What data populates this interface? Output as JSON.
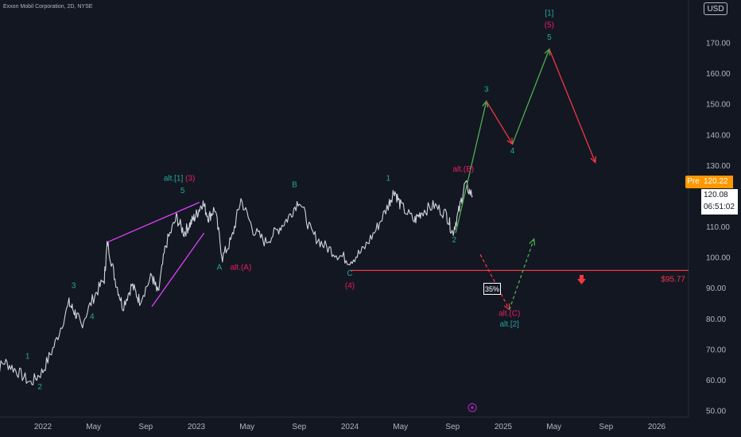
{
  "header": {
    "title": "Exxon Mobil Corporation, 2D, NYSE",
    "currency": "USD"
  },
  "price_tags": {
    "pre_label": "Pre",
    "pre_price": "120.22",
    "last_price": "120.08",
    "countdown": "06:51:02"
  },
  "colors": {
    "background": "#131722",
    "teal": "#26a69a",
    "crimson": "#e91e63",
    "magenta": "#e040fb",
    "green": "#4caf50",
    "red": "#f23645",
    "support": "#f23645"
  },
  "chart_data": {
    "type": "line",
    "title": "Exxon Mobil Corporation, 2D, NYSE",
    "xlabel": "",
    "ylabel": "",
    "ylim": [
      47,
      180
    ],
    "y_ticks": [
      "170.00",
      "160.00",
      "150.00",
      "140.00",
      "130.00",
      "120.00",
      "110.00",
      "100.00",
      "90.00",
      "80.00",
      "70.00",
      "60.00",
      "50.00"
    ],
    "x_ticks": [
      "2022",
      "May",
      "Sep",
      "2023",
      "May",
      "Sep",
      "2024",
      "May",
      "Sep",
      "2025",
      "May",
      "Sep",
      "2026"
    ],
    "series": [
      {
        "values": [
          [
            2021.67,
            62
          ],
          [
            2021.75,
            66
          ],
          [
            2021.83,
            63
          ],
          [
            2021.92,
            59
          ],
          [
            2022.0,
            63
          ],
          [
            2022.08,
            72
          ],
          [
            2022.17,
            85
          ],
          [
            2022.21,
            82
          ],
          [
            2022.25,
            78
          ],
          [
            2022.33,
            87
          ],
          [
            2022.4,
            93
          ],
          [
            2022.42,
            105
          ],
          [
            2022.47,
            93
          ],
          [
            2022.52,
            84
          ],
          [
            2022.58,
            91
          ],
          [
            2022.63,
            86
          ],
          [
            2022.71,
            94
          ],
          [
            2022.75,
            88
          ],
          [
            2022.8,
            104
          ],
          [
            2022.87,
            113
          ],
          [
            2022.92,
            108
          ],
          [
            2022.96,
            111
          ],
          [
            2023.0,
            114
          ],
          [
            2023.04,
            118
          ],
          [
            2023.08,
            113
          ],
          [
            2023.12,
            116
          ],
          [
            2023.17,
            100
          ],
          [
            2023.23,
            106
          ],
          [
            2023.29,
            119
          ],
          [
            2023.37,
            109
          ],
          [
            2023.45,
            105
          ],
          [
            2023.53,
            109
          ],
          [
            2023.6,
            113
          ],
          [
            2023.67,
            119
          ],
          [
            2023.75,
            108
          ],
          [
            2023.83,
            104
          ],
          [
            2023.92,
            101
          ],
          [
            2024.0,
            99
          ],
          [
            2024.08,
            102
          ],
          [
            2024.17,
            109
          ],
          [
            2024.25,
            117
          ],
          [
            2024.29,
            122
          ],
          [
            2024.33,
            117
          ],
          [
            2024.42,
            112
          ],
          [
            2024.47,
            115
          ],
          [
            2024.55,
            117
          ],
          [
            2024.63,
            114
          ],
          [
            2024.67,
            108
          ],
          [
            2024.71,
            115
          ],
          [
            2024.75,
            124
          ],
          [
            2024.8,
            120
          ]
        ]
      }
    ],
    "projection_up": [
      [
        2024.69,
        108
      ],
      [
        2024.89,
        151
      ],
      [
        2025.06,
        137
      ],
      [
        2025.3,
        168
      ]
    ],
    "projection_down": [
      [
        2024.89,
        151
      ],
      [
        2025.06,
        137
      ],
      [
        2025.3,
        168
      ],
      [
        2025.6,
        131
      ]
    ],
    "alt_path_down": [
      [
        2024.85,
        101
      ],
      [
        2025.04,
        83
      ]
    ],
    "alt_path_up": [
      [
        2025.04,
        83
      ],
      [
        2025.2,
        106
      ]
    ],
    "wedge_upper": [
      [
        2022.42,
        105
      ],
      [
        2023.02,
        118
      ]
    ],
    "wedge_lower": [
      [
        2022.71,
        84
      ],
      [
        2023.05,
        108
      ]
    ],
    "support_line": {
      "value": 95.77,
      "label": "$95.77",
      "start": 2024.0
    },
    "probability_label": "35%",
    "wave_labels": [
      {
        "text": "1",
        "x": 2021.9,
        "y": 67,
        "color": "teal"
      },
      {
        "text": "2",
        "x": 2021.98,
        "y": 57,
        "color": "teal"
      },
      {
        "text": "3",
        "x": 2022.2,
        "y": 90,
        "color": "teal"
      },
      {
        "text": "4",
        "x": 2022.32,
        "y": 80,
        "color": "teal"
      },
      {
        "text": "alt.[1]",
        "x": 2022.85,
        "y": 125,
        "color": "teal"
      },
      {
        "text": "(3)",
        "x": 2022.96,
        "y": 125,
        "color": "crimson"
      },
      {
        "text": "5",
        "x": 2022.91,
        "y": 121,
        "color": "teal"
      },
      {
        "text": "A",
        "x": 2023.15,
        "y": 96,
        "color": "teal"
      },
      {
        "text": "alt.(A)",
        "x": 2023.29,
        "y": 96,
        "color": "crimson"
      },
      {
        "text": "B",
        "x": 2023.64,
        "y": 123,
        "color": "teal"
      },
      {
        "text": "C",
        "x": 2024.0,
        "y": 94,
        "color": "teal"
      },
      {
        "text": "(4)",
        "x": 2024.0,
        "y": 90,
        "color": "crimson"
      },
      {
        "text": "1",
        "x": 2024.25,
        "y": 125,
        "color": "teal"
      },
      {
        "text": "alt.(B)",
        "x": 2024.74,
        "y": 128,
        "color": "crimson"
      },
      {
        "text": "2",
        "x": 2024.68,
        "y": 105,
        "color": "teal"
      },
      {
        "text": "3",
        "x": 2024.89,
        "y": 154,
        "color": "teal"
      },
      {
        "text": "4",
        "x": 2025.06,
        "y": 134,
        "color": "teal"
      },
      {
        "text": "5",
        "x": 2025.3,
        "y": 171,
        "color": "teal"
      },
      {
        "text": "(5)",
        "x": 2025.3,
        "y": 175,
        "color": "crimson"
      },
      {
        "text": "[1]",
        "x": 2025.3,
        "y": 179,
        "color": "teal"
      },
      {
        "text": "alt.(C)",
        "x": 2025.04,
        "y": 81,
        "color": "crimson"
      },
      {
        "text": "alt.[2]",
        "x": 2025.04,
        "y": 77.5,
        "color": "teal"
      }
    ]
  }
}
